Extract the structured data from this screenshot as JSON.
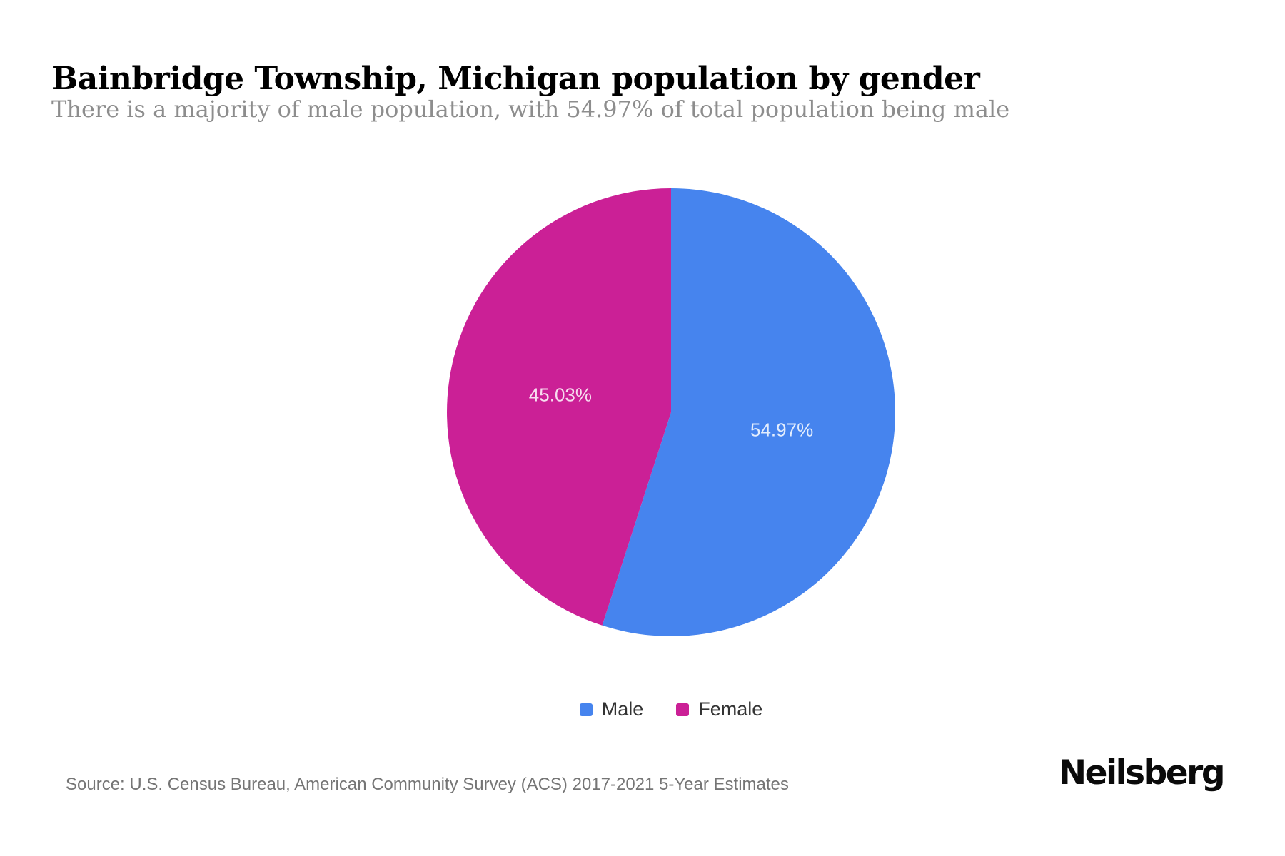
{
  "page": {
    "title": "Bainbridge Township, Michigan population by gender",
    "subtitle": "There is a majority of male population, with 54.97% of total population being male",
    "source": "Source: U.S. Census Bureau, American Community Survey (ACS) 2017-2021 5-Year Estimates",
    "brand": "Neilsberg"
  },
  "chart_data": {
    "type": "pie",
    "title": "Bainbridge Township, Michigan population by gender",
    "categories": [
      "Male",
      "Female"
    ],
    "values": [
      54.97,
      45.03
    ],
    "slice_labels": [
      "54.97%",
      "45.03%"
    ],
    "colors": [
      "#4684EE",
      "#CB2096"
    ],
    "start_angle_deg": 0,
    "direction": "clockwise",
    "legend_position": "bottom",
    "data_labels_inside": true
  }
}
